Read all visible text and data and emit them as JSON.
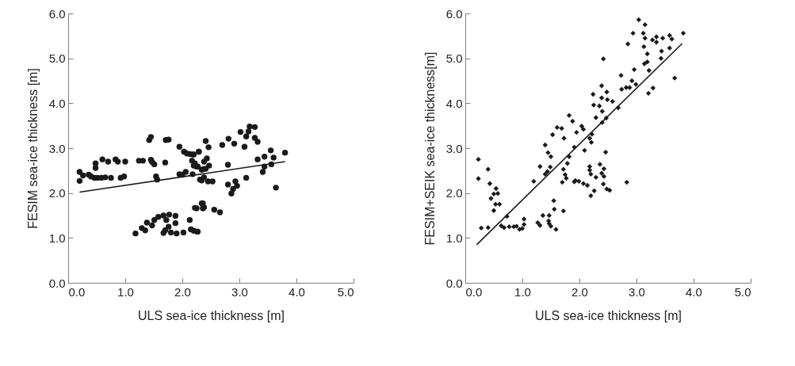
{
  "chart_data": [
    {
      "type": "scatter",
      "xlabel": "ULS sea-ice thickness [m]",
      "ylabel": "FESIM sea-ice thickness [m]",
      "xlim": [
        0,
        5
      ],
      "ylim": [
        0,
        6
      ],
      "xticks": [
        {
          "value": 0,
          "label": "0.0"
        },
        {
          "value": 1,
          "label": "1.0"
        },
        {
          "value": 2,
          "label": "2.0"
        },
        {
          "value": 3,
          "label": "3.0"
        },
        {
          "value": 4,
          "label": "4.0"
        },
        {
          "value": 5,
          "label": "5.0"
        }
      ],
      "yticks": [
        {
          "value": 0,
          "label": "0.0"
        },
        {
          "value": 1,
          "label": "1.0"
        },
        {
          "value": 2,
          "label": "2.0"
        },
        {
          "value": 3,
          "label": "3.0"
        },
        {
          "value": 4,
          "label": "4.0"
        },
        {
          "value": 5,
          "label": "5.0"
        },
        {
          "value": 6,
          "label": "6.0"
        }
      ],
      "grid": false,
      "series": [
        {
          "marker": "circle",
          "color": "#1a1a1a",
          "x": [
            0.2,
            0.2,
            0.26,
            0.36,
            0.4,
            0.46,
            0.48,
            0.48,
            0.51,
            0.6,
            0.58,
            0.65,
            0.7,
            0.75,
            0.83,
            0.87,
            0.92,
            0.98,
            1.0,
            1.24,
            1.31,
            1.45,
            1.47,
            1.51,
            1.54,
            1.56,
            1.7,
            1.42,
            1.45,
            1.71,
            1.76,
            1.95,
            2.03,
            2.08,
            2.18,
            2.29,
            2.17,
            2.2,
            2.27,
            1.95,
            2.06,
            2.18,
            2.31,
            2.36,
            1.18,
            1.29,
            1.35,
            1.38,
            1.47,
            1.51,
            1.58,
            1.67,
            1.72,
            1.77,
            1.88,
            1.88,
            1.67,
            1.7,
            1.76,
            1.8,
            1.9,
            2.02,
            2.13,
            2.15,
            2.26,
            2.25,
            2.34,
            2.38,
            2.13,
            2.2,
            2.29,
            2.22,
            2.25,
            2.38,
            2.43,
            2.47,
            2.41,
            2.34,
            2.0,
            2.38,
            2.34,
            2.45,
            2.53,
            2.41,
            2.46,
            2.7,
            2.81,
            2.91,
            3.02,
            3.09,
            3.12,
            3.16,
            3.18,
            3.27,
            3.27,
            3.32,
            2.8,
            2.8,
            2.93,
            2.96,
            2.89,
            2.86,
            3.12,
            3.32,
            3.44,
            3.41,
            3.44,
            3.55,
            3.6,
            3.56,
            3.64,
            3.8,
            2.2,
            2.27,
            2.22,
            2.36,
            2.36,
            2.56,
            2.66
          ],
          "values": [
            2.47,
            2.27,
            2.39,
            2.41,
            2.37,
            2.34,
            2.66,
            2.56,
            2.34,
            2.75,
            2.34,
            2.35,
            2.7,
            2.34,
            2.75,
            2.7,
            2.34,
            2.37,
            2.7,
            2.72,
            2.72,
            2.74,
            2.69,
            2.64,
            2.37,
            2.3,
            2.68,
            3.18,
            3.25,
            3.18,
            3.19,
            3.03,
            2.92,
            2.88,
            2.86,
            2.92,
            2.72,
            2.61,
            2.59,
            2.42,
            2.47,
            2.42,
            2.3,
            2.53,
            1.1,
            1.22,
            1.17,
            1.34,
            1.28,
            1.4,
            1.47,
            1.5,
            1.4,
            1.52,
            1.49,
            1.33,
            1.11,
            1.17,
            1.25,
            1.12,
            1.1,
            1.12,
            1.4,
            1.19,
            1.14,
            1.66,
            1.77,
            1.68,
            2.87,
            2.86,
            2.92,
            2.66,
            2.59,
            2.7,
            2.77,
            2.61,
            2.54,
            2.52,
            2.41,
            2.35,
            2.28,
            2.26,
            2.26,
            3.16,
            3.02,
            3.07,
            3.21,
            3.1,
            3.36,
            3.03,
            3.26,
            3.37,
            3.48,
            3.47,
            3.23,
            3.14,
            2.63,
            2.19,
            2.26,
            2.16,
            2.09,
            1.99,
            2.34,
            2.75,
            2.81,
            2.47,
            2.59,
            2.95,
            2.79,
            2.64,
            2.12,
            2.9,
            1.16,
            1.14,
            1.67,
            1.77,
            1.66,
            1.63,
            1.57
          ]
        },
        {
          "type": "line",
          "color": "#1a1a1a",
          "x": [
            0.2,
            3.8
          ],
          "values": [
            2.02,
            2.7
          ]
        }
      ]
    },
    {
      "type": "scatter",
      "xlabel": "ULS sea-ice thickness [m]",
      "ylabel": "FESIM+SEIK sea-ice thickness[m]",
      "xlim": [
        0,
        5
      ],
      "ylim": [
        0,
        6
      ],
      "xticks": [
        {
          "value": 0,
          "label": "0.0"
        },
        {
          "value": 1,
          "label": "1.0"
        },
        {
          "value": 2,
          "label": "2.0"
        },
        {
          "value": 3,
          "label": "3.0"
        },
        {
          "value": 4,
          "label": "4.0"
        },
        {
          "value": 5,
          "label": "5.0"
        }
      ],
      "yticks": [
        {
          "value": 0,
          "label": "0.0"
        },
        {
          "value": 1,
          "label": "1.0"
        },
        {
          "value": 2,
          "label": "2.0"
        },
        {
          "value": 3,
          "label": "3.0"
        },
        {
          "value": 4,
          "label": "4.0"
        },
        {
          "value": 5,
          "label": "5.0"
        },
        {
          "value": 6,
          "label": "6.0"
        }
      ],
      "grid": false,
      "series": [
        {
          "marker": "diamond",
          "color": "#1a1a1a",
          "x": [
            0.23,
            0.23,
            0.28,
            0.4,
            0.4,
            0.43,
            0.45,
            0.5,
            0.54,
            0.57,
            0.53,
            0.5,
            0.6,
            0.73,
            0.63,
            0.68,
            0.77,
            0.85,
            0.9,
            0.95,
            1.0,
            1.03,
            1.03,
            1.2,
            1.27,
            1.31,
            1.31,
            1.36,
            1.4,
            1.45,
            1.5,
            1.4,
            1.44,
            1.49,
            1.47,
            1.46,
            1.47,
            1.5,
            1.55,
            1.56,
            1.59,
            1.53,
            1.61,
            1.69,
            1.73,
            1.82,
            1.88,
            1.95,
            1.82,
            1.79,
            1.72,
            1.72,
            1.7,
            1.75,
            1.77,
            1.91,
            1.91,
            3.04,
            3.15,
            2.94,
            3.12,
            3.15,
            2.85,
            3.13,
            3.28,
            3.35,
            3.35,
            3.46,
            3.58,
            3.62,
            3.82,
            3.19,
            3.58,
            3.44,
            3.43,
            3.14,
            3.19,
            3.22,
            2.96,
            3.67,
            2.42,
            2.73,
            2.92,
            2.99,
            2.74,
            2.82,
            2.88,
            3.29,
            3.21,
            2.39,
            2.24,
            2.48,
            2.39,
            2.49,
            2.58,
            2.25,
            2.35,
            2.68,
            2.4,
            2.29,
            2.47,
            2.4,
            2.04,
            2.07,
            2.22,
            2.18,
            2.21,
            2.09,
            2.46,
            2.18,
            2.18,
            2.36,
            2.43,
            2.39,
            2.2,
            2.29,
            2.43,
            1.93,
            1.99,
            2.07,
            2.14,
            2.42,
            2.48,
            2.53,
            2.26,
            2.2,
            2.83
          ],
          "values": [
            2.75,
            2.32,
            1.22,
            1.23,
            2.53,
            2.21,
            1.88,
            1.98,
            2.1,
            1.99,
            1.75,
            1.61,
            1.75,
            1.48,
            1.27,
            1.23,
            1.25,
            1.25,
            1.26,
            1.19,
            1.21,
            1.42,
            1.3,
            2.26,
            1.34,
            1.28,
            2.59,
            1.5,
            3.07,
            2.9,
            2.81,
            2.42,
            2.48,
            2.58,
            1.5,
            1.38,
            1.32,
            1.26,
            1.83,
            1.64,
            1.19,
            3.3,
            3.46,
            3.44,
            3.22,
            3.73,
            3.6,
            3.35,
            2.81,
            2.66,
            2.53,
            1.6,
            2.24,
            2.41,
            2.33,
            3.02,
            2.25,
            5.86,
            5.75,
            5.56,
            5.56,
            5.45,
            5.32,
            5.26,
            5.41,
            5.48,
            5.36,
            5.45,
            5.51,
            5.43,
            5.56,
            5.1,
            5.23,
            5.16,
            5.0,
            4.88,
            4.92,
            4.73,
            4.75,
            4.56,
            4.99,
            4.62,
            4.5,
            4.42,
            4.31,
            4.35,
            4.35,
            4.34,
            4.22,
            4.39,
            4.2,
            4.25,
            4.12,
            4.08,
            4.04,
            3.96,
            3.94,
            3.9,
            3.82,
            3.68,
            3.67,
            3.57,
            3.49,
            3.42,
            3.31,
            3.22,
            3.13,
            2.95,
            2.91,
            2.59,
            2.51,
            2.64,
            2.54,
            2.44,
            2.42,
            2.35,
            2.37,
            2.28,
            2.26,
            2.21,
            2.17,
            2.2,
            2.09,
            2.06,
            2.05,
            1.94,
            2.24
          ]
        },
        {
          "type": "line",
          "color": "#1a1a1a",
          "x": [
            0.2,
            3.8
          ],
          "values": [
            0.85,
            5.33
          ]
        }
      ]
    }
  ]
}
